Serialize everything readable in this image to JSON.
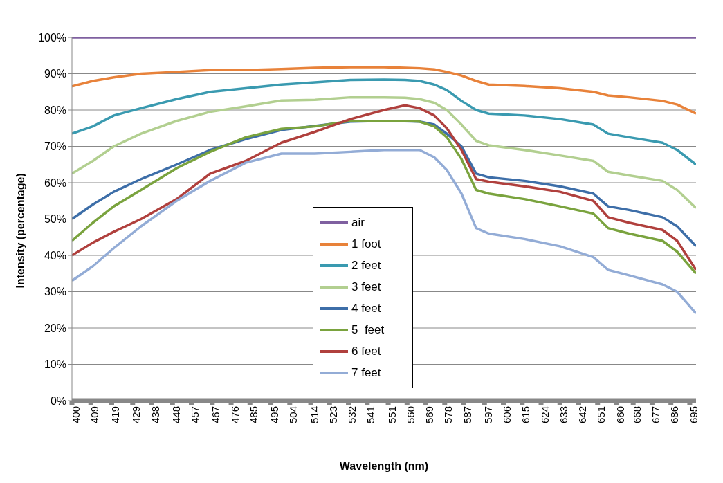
{
  "chart_data": {
    "type": "line",
    "xlabel": "Wavelength (nm)",
    "ylabel": "Intensity (percentage)",
    "x": [
      400,
      410,
      420,
      433,
      450,
      466,
      483,
      500,
      516,
      533,
      549,
      559,
      566,
      573,
      579,
      586,
      593,
      599,
      616,
      633,
      649,
      656,
      666,
      682,
      689,
      698
    ],
    "series": [
      {
        "name": "air",
        "color": "#7f60a0",
        "values": [
          100,
          100,
          100,
          100,
          100,
          100,
          100,
          100,
          100,
          100,
          100,
          100,
          100,
          100,
          100,
          100,
          100,
          100,
          100,
          100,
          100,
          100,
          100,
          100,
          100,
          100
        ]
      },
      {
        "name": "1 foot",
        "color": "#e8823a",
        "values": [
          86.5,
          88,
          89,
          90,
          90.5,
          91,
          91,
          91.3,
          91.6,
          91.8,
          91.8,
          91.6,
          91.5,
          91.2,
          90.5,
          89.5,
          88,
          87,
          86.6,
          86,
          85,
          84,
          83.5,
          82.5,
          81.5,
          79
        ]
      },
      {
        "name": "2 feet",
        "color": "#3a9ab0",
        "values": [
          73.5,
          75.5,
          78.5,
          80.5,
          83,
          85,
          86,
          87,
          87.6,
          88.3,
          88.4,
          88.3,
          88,
          87,
          85.5,
          82.5,
          80,
          79,
          78.5,
          77.5,
          76,
          73.5,
          72.5,
          71,
          69,
          65
        ]
      },
      {
        "name": "3 feet",
        "color": "#b2cf90",
        "values": [
          62.5,
          66,
          70,
          73.5,
          77,
          79.5,
          81,
          82.6,
          82.8,
          83.5,
          83.5,
          83.4,
          83,
          82,
          80,
          76,
          71.5,
          70.3,
          69,
          67.5,
          66,
          63,
          62,
          60.5,
          58,
          53
        ]
      },
      {
        "name": "4 feet",
        "color": "#3d6ea8",
        "values": [
          50,
          54,
          57.5,
          61,
          65,
          69,
          72,
          74.5,
          75.6,
          76.8,
          77,
          76.9,
          76.8,
          76,
          73.5,
          70,
          62.5,
          61.5,
          60.5,
          59,
          57,
          53.5,
          52.5,
          50.5,
          48,
          42.5
        ]
      },
      {
        "name": "5  feet",
        "color": "#7aa33e",
        "values": [
          44,
          49,
          53.5,
          58,
          64,
          68.5,
          72.5,
          74.8,
          75.5,
          77,
          77,
          77,
          76.8,
          75.5,
          72.5,
          66.5,
          58,
          57,
          55.5,
          53.5,
          51.5,
          47.5,
          46,
          44,
          41,
          35
        ]
      },
      {
        "name": "6 feet",
        "color": "#b0403d",
        "values": [
          40,
          43.5,
          46.5,
          50,
          55.5,
          62.5,
          66,
          71,
          74,
          77.5,
          80,
          81.3,
          80.5,
          78.5,
          75,
          69,
          61,
          60.3,
          59,
          57.5,
          55,
          50.5,
          49,
          47,
          44,
          36
        ]
      },
      {
        "name": "7 feet",
        "color": "#93acd6",
        "values": [
          33,
          37,
          42,
          48,
          55,
          60.5,
          65.5,
          68,
          68,
          68.5,
          69,
          69,
          69,
          67,
          63.5,
          57,
          47.5,
          46,
          44.5,
          42.5,
          39.5,
          36,
          34.5,
          32,
          30,
          24
        ]
      }
    ],
    "xlim": [
      400,
      698
    ],
    "xticks": [
      400,
      409,
      419,
      429,
      438,
      448,
      457,
      467,
      476,
      485,
      495,
      504,
      514,
      523,
      532,
      541,
      551,
      560,
      569,
      578,
      587,
      597,
      606,
      615,
      624,
      633,
      642,
      651,
      660,
      668,
      677,
      686,
      695
    ],
    "ylim": [
      0,
      100
    ],
    "yticks": [
      {
        "value": 0,
        "label": "0%"
      },
      {
        "value": 10,
        "label": "10%"
      },
      {
        "value": 20,
        "label": "20%"
      },
      {
        "value": 30,
        "label": "30%"
      },
      {
        "value": 40,
        "label": "40%"
      },
      {
        "value": 50,
        "label": "50%"
      },
      {
        "value": 60,
        "label": "60%"
      },
      {
        "value": 70,
        "label": "70%"
      },
      {
        "value": 80,
        "label": "80%"
      },
      {
        "value": 90,
        "label": "90%"
      },
      {
        "value": 100,
        "label": "100%"
      }
    ],
    "grid": "y",
    "legend": "center",
    "marker": "none",
    "line_style": "solid"
  }
}
